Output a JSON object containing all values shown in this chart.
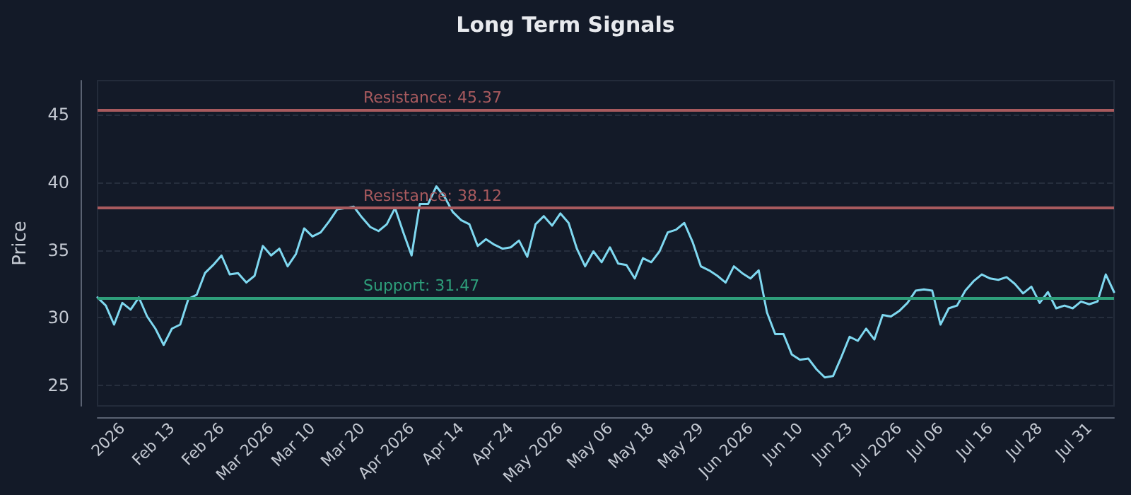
{
  "chart_data": {
    "type": "line",
    "title": "Long Term Signals",
    "ylabel": "Price",
    "categories": [
      null,
      null,
      null,
      "2026",
      null,
      null,
      null,
      null,
      null,
      "Feb 13",
      null,
      null,
      null,
      null,
      null,
      "Feb 26",
      null,
      null,
      null,
      null,
      null,
      "Mar 2026",
      null,
      null,
      null,
      null,
      "Mar 10",
      null,
      null,
      null,
      null,
      null,
      "Mar 20",
      null,
      null,
      null,
      null,
      null,
      "Apr 2026",
      null,
      null,
      null,
      null,
      null,
      "Apr 14",
      null,
      null,
      null,
      null,
      null,
      "Apr 24",
      null,
      null,
      null,
      null,
      null,
      "May 2026",
      null,
      null,
      null,
      null,
      null,
      "May 06",
      null,
      null,
      null,
      null,
      "May 18",
      null,
      null,
      null,
      null,
      null,
      "May 29",
      null,
      null,
      null,
      null,
      null,
      "Jun 2026",
      null,
      null,
      null,
      null,
      null,
      "Jun 10",
      null,
      null,
      null,
      null,
      null,
      "Jun 23",
      null,
      null,
      null,
      null,
      null,
      "Jul 2026",
      null,
      null,
      null,
      null,
      "Jul 06",
      null,
      null,
      null,
      null,
      null,
      "Jul 16",
      null,
      null,
      null,
      null,
      null,
      "Jul 28",
      null,
      null,
      null,
      null,
      null,
      "Jul 31",
      null,
      null,
      null
    ],
    "series": [
      {
        "color": "#7fd8f0",
        "values": [
          31.5,
          30.9,
          29.5,
          31.1,
          30.6,
          31.5,
          30.1,
          29.2,
          28.0,
          29.2,
          29.5,
          31.4,
          31.7,
          33.3,
          33.9,
          34.6,
          33.2,
          33.3,
          32.6,
          33.1,
          35.3,
          34.6,
          35.1,
          33.8,
          34.7,
          36.6,
          36.0,
          36.3,
          37.1,
          38.0,
          38.1,
          38.2,
          37.4,
          36.7,
          36.4,
          36.9,
          38.1,
          36.3,
          34.6,
          38.4,
          38.4,
          39.7,
          38.9,
          37.8,
          37.2,
          36.9,
          35.3,
          35.8,
          35.4,
          35.1,
          35.2,
          35.7,
          34.5,
          36.9,
          37.5,
          36.8,
          37.7,
          37.0,
          35.1,
          33.8,
          34.9,
          34.1,
          35.2,
          34.0,
          33.9,
          32.9,
          34.4,
          34.1,
          34.9,
          36.3,
          36.5,
          37.0,
          35.6,
          33.8,
          33.5,
          33.1,
          32.6,
          33.8,
          33.3,
          32.9,
          33.5,
          30.4,
          28.8,
          28.8,
          27.3,
          26.9,
          27.0,
          26.2,
          25.6,
          25.7,
          27.1,
          28.6,
          28.3,
          29.2,
          28.4,
          30.2,
          30.1,
          30.5,
          31.1,
          32.0,
          32.1,
          32.0,
          29.5,
          30.7,
          30.9,
          32.0,
          32.7,
          33.2,
          32.9,
          32.8,
          33.0,
          32.5,
          31.8,
          32.3,
          31.1,
          31.9,
          30.7,
          30.9,
          30.7,
          31.2,
          31.0,
          31.2,
          33.2,
          31.9
        ]
      }
    ],
    "ylim": [
      23.5,
      47.5
    ],
    "yticks": [
      25,
      30,
      35,
      40,
      45
    ],
    "grid": "y",
    "marker": "none",
    "line_style": "solid",
    "ref_lines": [
      {
        "axis": "y",
        "value": 45.37,
        "label": "Resistance: 45.37",
        "color": "#a85a5e"
      },
      {
        "axis": "y",
        "value": 38.12,
        "label": "Resistance: 38.12",
        "color": "#a85a5e"
      },
      {
        "axis": "y",
        "value": 31.47,
        "label": "Support: 31.47",
        "color": "#2e9e7a"
      }
    ]
  }
}
